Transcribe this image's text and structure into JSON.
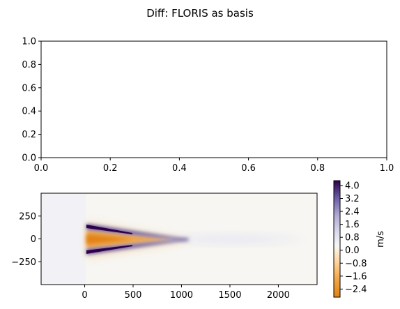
{
  "figure": {
    "title": "Diff: FLORIS as basis"
  },
  "chart_data": [
    {
      "type": "line",
      "title": "",
      "xlabel": "",
      "ylabel": "",
      "xlim": [
        0.0,
        1.0
      ],
      "ylim": [
        0.0,
        1.0
      ],
      "xticks": [
        "0.0",
        "0.2",
        "0.4",
        "0.6",
        "0.8",
        "1.0"
      ],
      "yticks": [
        "0.0",
        "0.2",
        "0.4",
        "0.6",
        "0.8",
        "1.0"
      ],
      "series": [],
      "grid": false
    },
    {
      "type": "heatmap",
      "title": "",
      "xlabel": "",
      "ylabel": "",
      "xlim": [
        -450,
        2400
      ],
      "ylim": [
        -500,
        500
      ],
      "xticks": [
        "0",
        "500",
        "1000",
        "1500",
        "2000"
      ],
      "yticks": [
        "250",
        "0",
        "−250"
      ],
      "colormap": "PuOr",
      "colorbar": {
        "label": "m/s",
        "range": [
          -2.9,
          4.3
        ],
        "ticks": [
          "4.0",
          "3.2",
          "2.4",
          "1.6",
          "0.8",
          "0.0",
          "−0.8",
          "−1.6",
          "−2.4"
        ]
      },
      "field_features": [
        {
          "kind": "wake_edge",
          "sign": "positive",
          "start_x": 0,
          "end_x": 1100,
          "y_start": 140,
          "y_end": 0,
          "peak": 4.0
        },
        {
          "kind": "wake_edge",
          "sign": "positive",
          "start_x": 0,
          "end_x": 1100,
          "y_start": -140,
          "y_end": 0,
          "peak": 4.0
        },
        {
          "kind": "wake_core",
          "sign": "negative",
          "start_x": 0,
          "end_x": 900,
          "y_center": 0,
          "peak": -2.4
        },
        {
          "kind": "far_wake",
          "sign": "positive",
          "start_x": 900,
          "end_x": 2300,
          "y_center": 0,
          "peak": 0.6
        },
        {
          "kind": "upstream_offset",
          "start_x": -450,
          "end_x": 0,
          "value": 0.15
        }
      ],
      "grid": false
    }
  ]
}
